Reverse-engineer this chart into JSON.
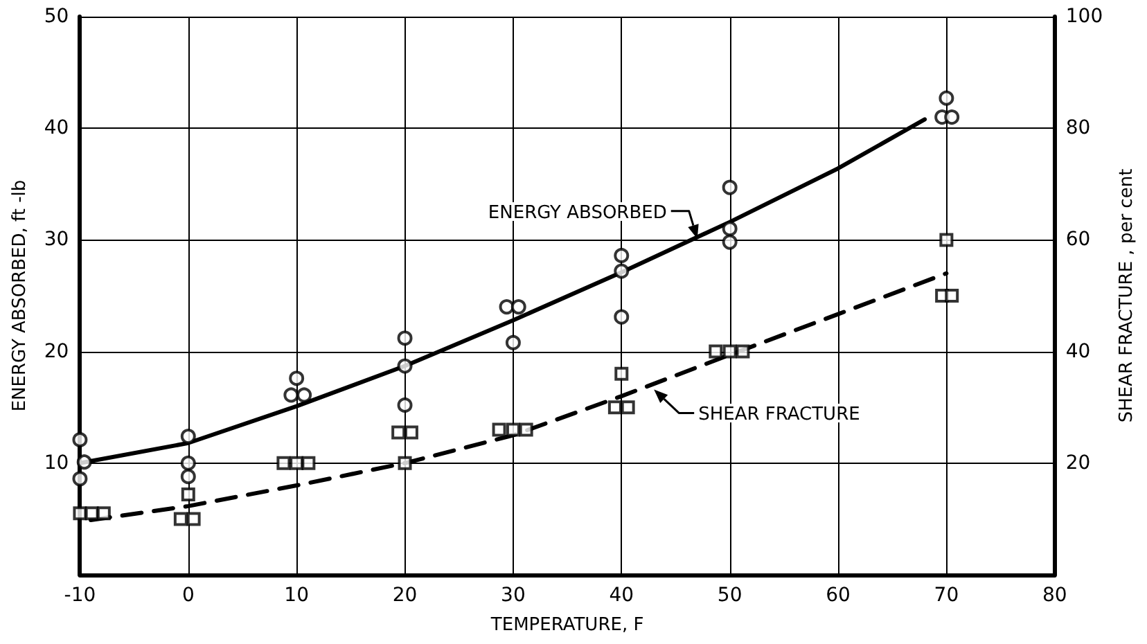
{
  "chart_data": {
    "type": "scatter",
    "xlabel": "TEMPERATURE, F",
    "ylabel": "ENERGY ABSORBED, ft -lb",
    "y2label": "SHEAR FRACTURE , per cent",
    "xlim": [
      -10,
      80
    ],
    "xticks": [
      -10,
      0,
      10,
      20,
      30,
      40,
      50,
      60,
      70,
      80
    ],
    "ylim": [
      0,
      50
    ],
    "yticks": [
      10,
      20,
      30,
      40,
      50
    ],
    "y2lim": [
      0,
      100
    ],
    "y2ticks": [
      20,
      40,
      60,
      80,
      100
    ],
    "grid": true,
    "series": [
      {
        "marker": "circle",
        "color": "#000000",
        "x": [
          -10,
          -9.6,
          -10,
          0,
          0,
          0,
          10,
          9.5,
          10.7,
          20,
          20,
          20,
          29.4,
          30.5,
          30,
          40,
          40,
          40,
          50,
          50,
          50,
          70,
          69.6,
          70.5
        ],
        "values": [
          12.1,
          10.1,
          8.6,
          12.4,
          10.0,
          8.8,
          17.6,
          16.1,
          16.1,
          21.2,
          18.7,
          15.2,
          24.0,
          24.0,
          20.8,
          28.6,
          27.2,
          23.1,
          34.7,
          31.0,
          29.8,
          42.7,
          41.0,
          41.0
        ]
      },
      {
        "marker": "square",
        "color": "#000000",
        "axis": "y2",
        "x": [
          -10,
          -8.9,
          -7.8,
          0,
          -0.7,
          0.5,
          8.8,
          10,
          11.1,
          19.4,
          20.6,
          20,
          28.7,
          30,
          31.2,
          40,
          39.4,
          40.6,
          48.7,
          50,
          51.2,
          70,
          69.6,
          70.5
        ],
        "values": [
          11,
          11,
          11,
          14.4,
          10,
          10,
          20,
          20,
          20,
          25.5,
          25.5,
          20,
          26,
          26,
          26,
          36,
          30,
          30,
          40,
          40,
          40,
          60,
          50,
          50
        ]
      },
      {
        "type": "line",
        "marker": "none",
        "line_style": "solid",
        "color": "#000000",
        "x": [
          -10,
          0,
          10,
          20,
          30,
          40,
          50,
          60,
          68
        ],
        "values": [
          10,
          11.8,
          15.1,
          18.7,
          22.8,
          27.1,
          31.6,
          36.4,
          40.8
        ]
      },
      {
        "type": "line",
        "marker": "none",
        "line_style": "dashed",
        "color": "#000000",
        "axis": "y2",
        "x": [
          -9,
          0,
          10,
          20,
          30,
          40,
          50,
          60,
          70
        ],
        "values": [
          9.8,
          12.3,
          16,
          20,
          25,
          32,
          39.4,
          46.7,
          54
        ]
      }
    ],
    "annotations": [
      {
        "text": "ENERGY ABSORBED",
        "x": 47,
        "y": 30.1
      },
      {
        "text": "SHEAR FRACTURE",
        "x": 43,
        "y": 16.6
      }
    ]
  }
}
